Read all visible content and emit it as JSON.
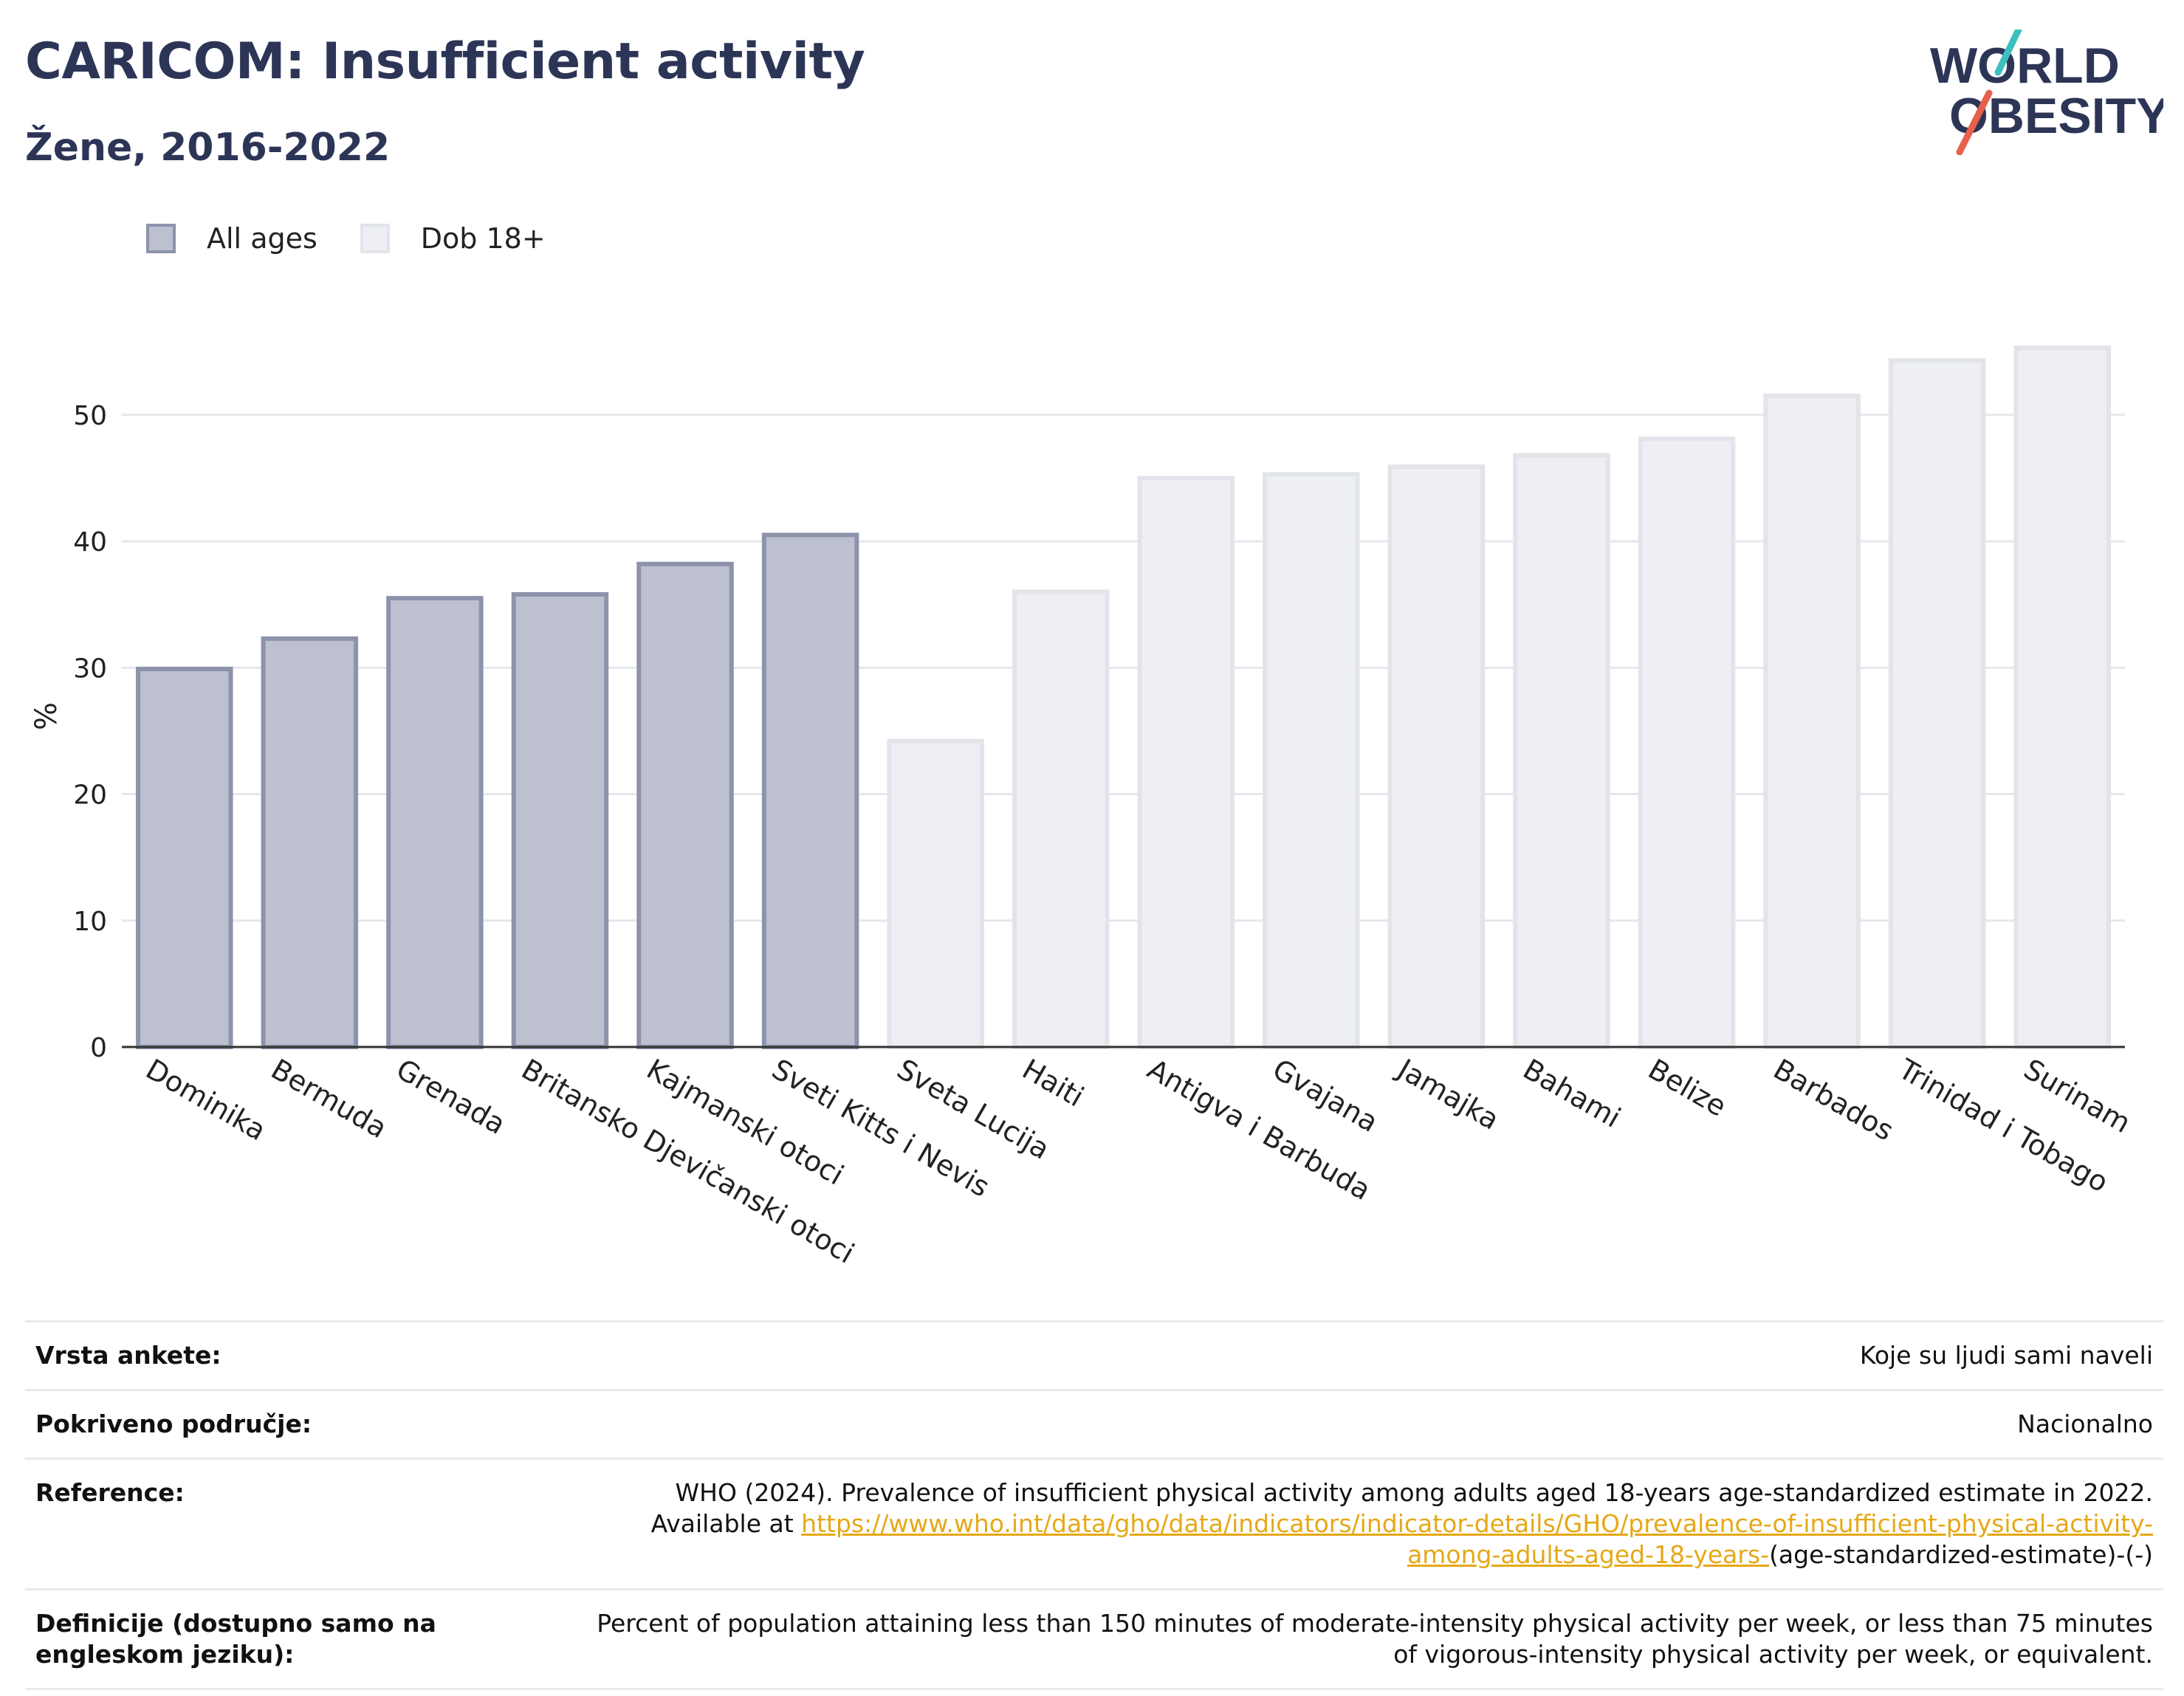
{
  "header": {
    "title": "CARICOM: Insufficient activity",
    "subtitle": "Žene, 2016-2022"
  },
  "logo": {
    "line1": "WORLD",
    "line2": "OBESITY",
    "accent_colors": [
      "#3dbfc0",
      "#e8604c"
    ],
    "text_color": "#2d3557"
  },
  "legend": {
    "items": [
      {
        "label": "All ages"
      },
      {
        "label": "Dob 18+"
      }
    ]
  },
  "chart_data": {
    "type": "bar",
    "ylabel": "%",
    "xlabel": "",
    "ylim": [
      0,
      57
    ],
    "yticks": [
      0,
      10,
      20,
      30,
      40,
      50
    ],
    "grid": true,
    "legend_position": "top-left",
    "colors": {
      "All ages": "#bcc0cf",
      "Dob 18+": "#eeeff4"
    },
    "categories": [
      "Dominika",
      "Bermuda",
      "Grenada",
      "Britansko Djevičanski otoci",
      "Kajmanski otoci",
      "Sveti Kitts i Nevis",
      "Sveta Lucija",
      "Haiti",
      "Antigva i Barbuda",
      "Gvajana",
      "Jamajka",
      "Bahami",
      "Belize",
      "Barbados",
      "Trinidad i Tobago",
      "Surinam"
    ],
    "series": [
      {
        "name": "All ages",
        "values": [
          29.9,
          32.3,
          35.5,
          35.8,
          38.2,
          40.5,
          null,
          null,
          null,
          null,
          null,
          null,
          null,
          null,
          null,
          null
        ]
      },
      {
        "name": "Dob 18+",
        "values": [
          null,
          null,
          null,
          null,
          null,
          null,
          24.2,
          36.0,
          45.0,
          45.3,
          45.9,
          46.8,
          48.1,
          51.5,
          54.3,
          55.3
        ]
      }
    ]
  },
  "meta": {
    "rows": [
      {
        "label": "Vrsta ankete:",
        "value": "Koje su ljudi sami naveli"
      },
      {
        "label": "Pokriveno područje:",
        "value": "Nacionalno"
      },
      {
        "label": "Reference:",
        "value_pre": "WHO (2024). Prevalence of insufficient physical activity among adults aged 18-years age-standardized estimate in 2022. Available at",
        "link": "https://www.who.int/data/gho/data/indicators/indicator-details/GHO/prevalence-of-insufficient-physical-activity-among-adults-aged-18-years-",
        "value_post": "(age-standardized-estimate)-(-)"
      },
      {
        "label": "Definicije (dostupno samo na engleskom jeziku):",
        "value": "Percent of population attaining less than 150 minutes of moderate-intensity physical activity per week, or less than 75 minutes of vigorous-intensity physical activity per week, or equivalent."
      }
    ]
  }
}
